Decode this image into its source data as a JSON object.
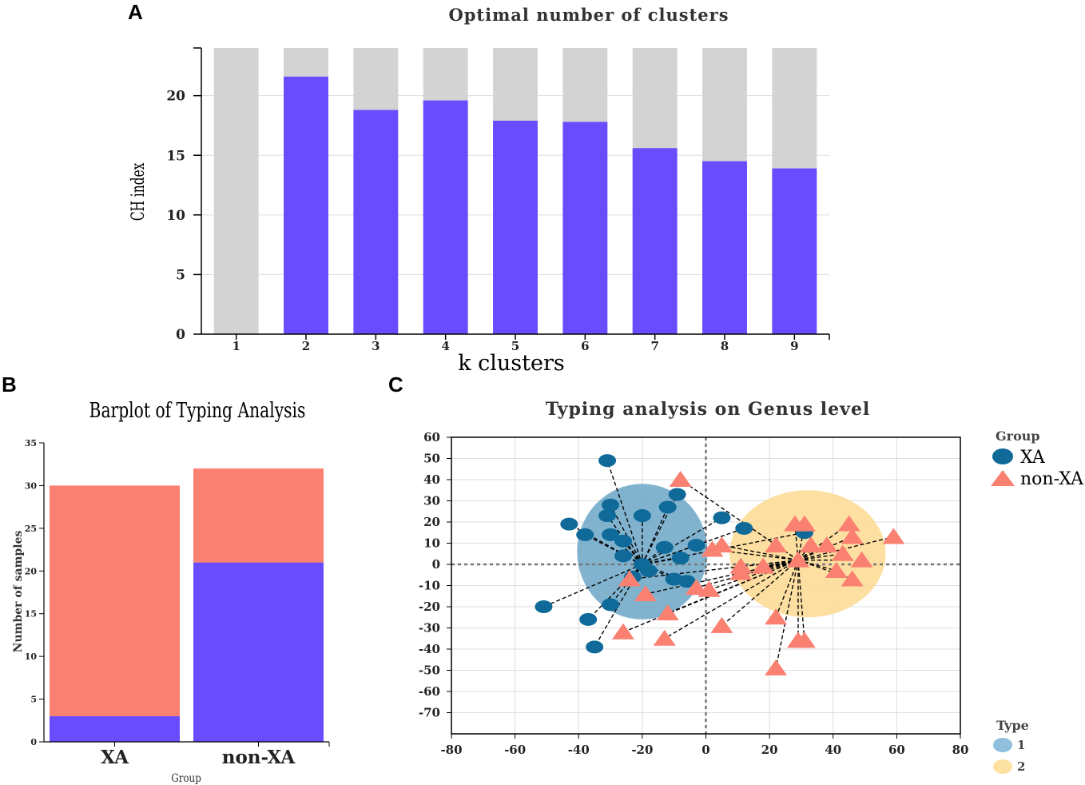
{
  "panels": {
    "a": "A",
    "b": "B",
    "c": "C"
  },
  "colors": {
    "bar": "#6a4cff",
    "bar_bg": "#d3d3d3",
    "salmon": "#fa8072",
    "xa": "#0f6a99",
    "ellipse1": "#6fa8c8",
    "ellipse2": "#fddb94",
    "type1": "#8fbfdc",
    "type2": "#fde1a0"
  },
  "chart_data": [
    {
      "id": "A",
      "type": "bar",
      "title": "Optimal number of clusters",
      "xlabel": "k clusters",
      "ylabel": "CH index",
      "categories": [
        "1",
        "2",
        "3",
        "4",
        "5",
        "6",
        "7",
        "8",
        "9"
      ],
      "values": [
        0,
        21.6,
        18.8,
        19.6,
        17.9,
        17.8,
        15.6,
        14.5,
        13.9
      ],
      "background_max": 24,
      "ylim": [
        0,
        24
      ],
      "yticks": [
        "0",
        "5",
        "10",
        "15",
        "20"
      ],
      "ytick_values": [
        0,
        5,
        10,
        15,
        20
      ]
    },
    {
      "id": "B",
      "type": "bar",
      "stacked": true,
      "title": "Barplot of Typing Analysis",
      "xlabel": "Group",
      "ylabel": "Number of samples",
      "categories": [
        "XA",
        "non-XA"
      ],
      "series": [
        {
          "name": "Type 1",
          "values": [
            3,
            21
          ]
        },
        {
          "name": "Type 2",
          "values": [
            27,
            11
          ]
        }
      ],
      "ylim": [
        0,
        35
      ],
      "yticks": [
        "0",
        "5",
        "10",
        "15",
        "20",
        "25",
        "30",
        "35"
      ],
      "ytick_values": [
        0,
        5,
        10,
        15,
        20,
        25,
        30,
        35
      ]
    },
    {
      "id": "C",
      "type": "scatter",
      "title": "Typing analysis on Genus level",
      "xlim": [
        -80,
        80
      ],
      "ylim": [
        -80,
        60
      ],
      "xticks": [
        "-80",
        "-60",
        "-40",
        "-20",
        "0",
        "20",
        "40",
        "60",
        "80"
      ],
      "xtick_values": [
        -80,
        -60,
        -40,
        -20,
        0,
        20,
        40,
        60,
        80
      ],
      "yticks": [
        "60",
        "50",
        "40",
        "30",
        "20",
        "10",
        "0",
        "-10",
        "-20",
        "-30",
        "-40",
        "-50",
        "-60",
        "-70"
      ],
      "ytick_values": [
        60,
        50,
        40,
        30,
        20,
        10,
        0,
        -10,
        -20,
        -30,
        -40,
        -50,
        -60,
        -70
      ],
      "legend_group_title": "Group",
      "legend_type_title": "Type",
      "series": [
        {
          "name": "XA",
          "marker": "circle",
          "points": [
            [
              -31,
              49
            ],
            [
              -9,
              33
            ],
            [
              -30,
              28
            ],
            [
              -12,
              27
            ],
            [
              -20,
              23
            ],
            [
              -31,
              23
            ],
            [
              -43,
              19
            ],
            [
              -38,
              14
            ],
            [
              -30,
              14
            ],
            [
              -26,
              11
            ],
            [
              -13,
              8
            ],
            [
              -3,
              9
            ],
            [
              -26,
              4
            ],
            [
              -8,
              3
            ],
            [
              -23,
              -6
            ],
            [
              -18,
              -3
            ],
            [
              -10,
              -7
            ],
            [
              -6,
              -8
            ],
            [
              -30,
              -19
            ],
            [
              -51,
              -20
            ],
            [
              -37,
              -26
            ],
            [
              -35,
              -39
            ],
            [
              5,
              22
            ],
            [
              12,
              17
            ],
            [
              31,
              15
            ],
            [
              -20,
              0
            ]
          ],
          "centroid": [
            -20,
            0
          ]
        },
        {
          "name": "non-XA",
          "marker": "triangle",
          "points": [
            [
              -8,
              40
            ],
            [
              -24,
              -7
            ],
            [
              -19,
              -14
            ],
            [
              -12,
              -23
            ],
            [
              -26,
              -32
            ],
            [
              -13,
              -35
            ],
            [
              -3,
              -11
            ],
            [
              1,
              -12
            ],
            [
              5,
              -29
            ],
            [
              2,
              7
            ],
            [
              5,
              9
            ],
            [
              11,
              -1
            ],
            [
              11,
              -4
            ],
            [
              18,
              -1
            ],
            [
              22,
              9
            ],
            [
              28,
              19
            ],
            [
              31,
              19
            ],
            [
              33,
              9
            ],
            [
              38,
              9
            ],
            [
              43,
              5
            ],
            [
              45,
              19
            ],
            [
              46,
              13
            ],
            [
              41,
              -3
            ],
            [
              46,
              -7
            ],
            [
              49,
              2
            ],
            [
              59,
              13
            ],
            [
              22,
              -25
            ],
            [
              22,
              -49
            ],
            [
              29,
              -36
            ],
            [
              31,
              -36
            ],
            [
              29,
              2
            ]
          ],
          "centroid": [
            29,
            2
          ]
        }
      ],
      "clusters": [
        {
          "type": "1",
          "center": [
            -20,
            6
          ],
          "rx": 20.5,
          "ry": 32
        },
        {
          "type": "2",
          "center": [
            32,
            5
          ],
          "rx": 24.5,
          "ry": 30
        }
      ]
    }
  ]
}
